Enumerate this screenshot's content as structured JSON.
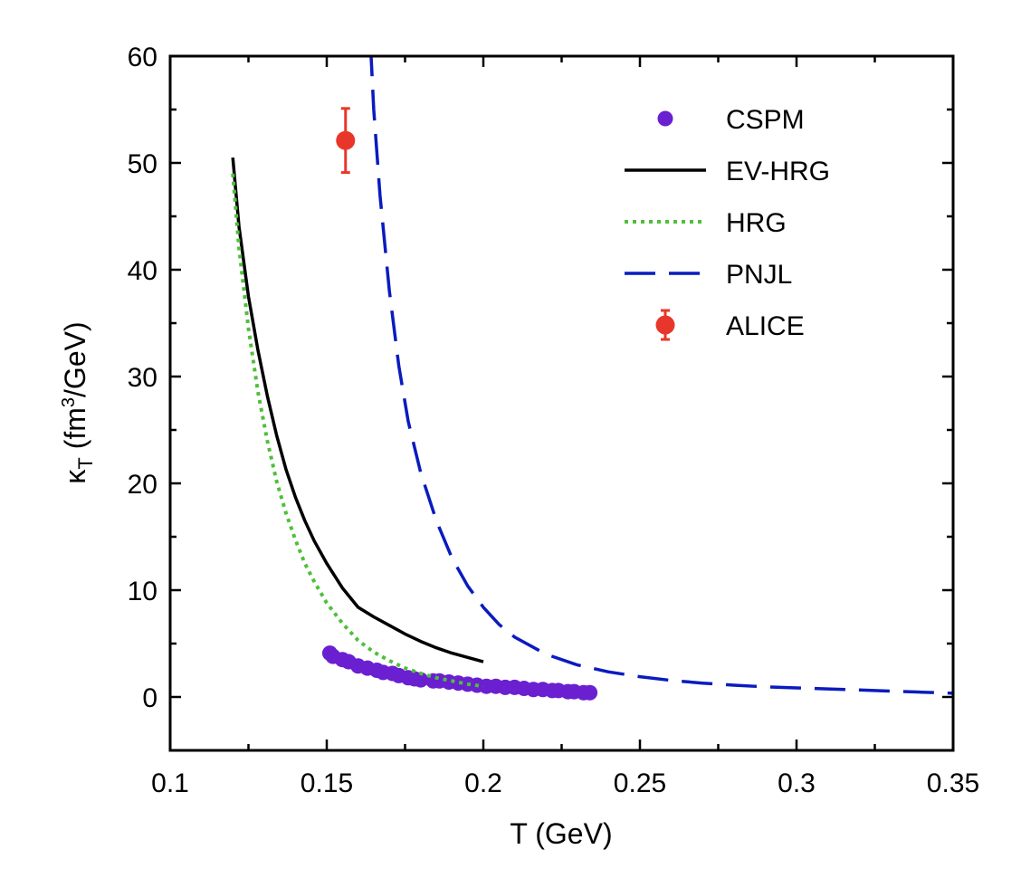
{
  "chart_data": {
    "type": "line",
    "xlabel": "T (GeV)",
    "ylabel": {
      "kappa": "κ",
      "sub": "T",
      "unit_open": " (fm",
      "sup": "3",
      "unit_close": "/GeV)"
    },
    "xlim": [
      0.1,
      0.35
    ],
    "ylim": [
      -5,
      60
    ],
    "xticks": [
      0.1,
      0.15,
      0.2,
      0.25,
      0.3,
      0.35
    ],
    "xtick_labels": [
      "0.1",
      "0.15",
      "0.2",
      "0.25",
      "0.3",
      "0.35"
    ],
    "yticks": [
      0,
      10,
      20,
      30,
      40,
      50,
      60
    ],
    "ytick_labels": [
      "0",
      "10",
      "20",
      "30",
      "40",
      "50",
      "60"
    ],
    "grid": false,
    "legend_position": "top-right",
    "series": [
      {
        "name": "CSPM",
        "kind": "scatter",
        "color": "#6a1fd1",
        "x": [
          0.151,
          0.152,
          0.155,
          0.157,
          0.16,
          0.163,
          0.166,
          0.168,
          0.171,
          0.173,
          0.176,
          0.178,
          0.18,
          0.184,
          0.186,
          0.189,
          0.192,
          0.195,
          0.198,
          0.201,
          0.204,
          0.207,
          0.21,
          0.213,
          0.216,
          0.219,
          0.222,
          0.224,
          0.227,
          0.229,
          0.232,
          0.234
        ],
        "y": [
          4.1,
          3.8,
          3.5,
          3.3,
          2.9,
          2.7,
          2.5,
          2.3,
          2.2,
          2.0,
          1.8,
          1.7,
          1.6,
          1.5,
          1.5,
          1.4,
          1.3,
          1.2,
          1.1,
          1.0,
          1.0,
          0.9,
          0.9,
          0.8,
          0.7,
          0.7,
          0.6,
          0.6,
          0.5,
          0.5,
          0.4,
          0.4
        ]
      },
      {
        "name": "EV-HRG",
        "kind": "line",
        "style": "solid",
        "color": "#000000",
        "x": [
          0.12,
          0.122,
          0.125,
          0.128,
          0.131,
          0.134,
          0.137,
          0.14,
          0.143,
          0.146,
          0.15,
          0.155,
          0.16,
          0.165,
          0.17,
          0.175,
          0.18,
          0.185,
          0.19,
          0.195,
          0.2
        ],
        "y": [
          50.5,
          44.0,
          37.5,
          32.5,
          28.2,
          24.5,
          21.3,
          18.7,
          16.5,
          14.6,
          12.5,
          10.2,
          8.4,
          7.5,
          6.7,
          5.9,
          5.2,
          4.6,
          4.1,
          3.7,
          3.3
        ]
      },
      {
        "name": "HRG",
        "kind": "line",
        "style": "dotted",
        "color": "#4fbf3a",
        "x": [
          0.12,
          0.122,
          0.125,
          0.128,
          0.131,
          0.134,
          0.137,
          0.14,
          0.143,
          0.146,
          0.15,
          0.155,
          0.16,
          0.165,
          0.17,
          0.175,
          0.18,
          0.185,
          0.19,
          0.195,
          0.2
        ],
        "y": [
          49.0,
          42.0,
          34.5,
          28.6,
          24.0,
          20.2,
          17.2,
          14.7,
          12.5,
          10.8,
          8.8,
          6.9,
          5.3,
          4.2,
          3.4,
          2.7,
          2.2,
          1.8,
          1.5,
          1.2,
          1.0
        ]
      },
      {
        "name": "PNJL",
        "kind": "line",
        "style": "dashed",
        "color": "#0a1bbf",
        "x": [
          0.164,
          0.165,
          0.167,
          0.17,
          0.173,
          0.176,
          0.18,
          0.185,
          0.19,
          0.195,
          0.2,
          0.205,
          0.21,
          0.22,
          0.23,
          0.24,
          0.25,
          0.26,
          0.27,
          0.28,
          0.29,
          0.3,
          0.31,
          0.32,
          0.33,
          0.34,
          0.35
        ],
        "y": [
          61,
          55,
          47,
          38,
          31,
          25.8,
          21,
          16.5,
          13,
          10.4,
          8.4,
          6.8,
          5.6,
          4.0,
          3.0,
          2.35,
          1.9,
          1.55,
          1.3,
          1.1,
          0.95,
          0.85,
          0.75,
          0.65,
          0.55,
          0.45,
          0.35
        ]
      },
      {
        "name": "ALICE",
        "kind": "errorbar",
        "color": "#e8372a",
        "x": [
          0.156
        ],
        "y": [
          52.1
        ],
        "yerr": [
          3.0
        ]
      }
    ]
  }
}
